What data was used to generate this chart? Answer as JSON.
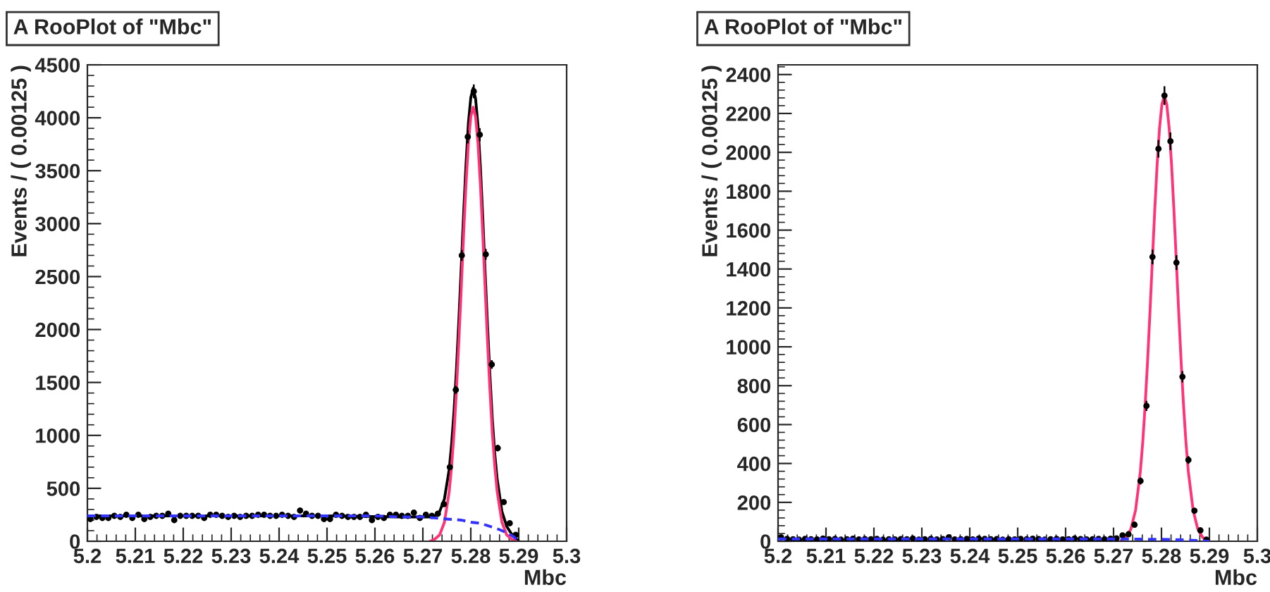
{
  "chart_data": [
    {
      "type": "scatter",
      "title": "A RooPlot of \"Mbc\"",
      "xlabel": "Mbc",
      "ylabel": "Events / ( 0.00125 )",
      "xlim": [
        5.2,
        5.3
      ],
      "xticks": [
        5.2,
        5.21,
        5.22,
        5.23,
        5.24,
        5.25,
        5.26,
        5.27,
        5.28,
        5.29,
        5.3
      ],
      "ylim": [
        0,
        4500
      ],
      "yticks": [
        0,
        500,
        1000,
        1500,
        2000,
        2500,
        3000,
        3500,
        4000,
        4500
      ],
      "grid": false,
      "series": [
        {
          "type": "line",
          "color": "#3333ff",
          "line_style": "dashed",
          "x": [
            5.2,
            5.21,
            5.22,
            5.23,
            5.24,
            5.25,
            5.26,
            5.265,
            5.27,
            5.275,
            5.278,
            5.28,
            5.282,
            5.284,
            5.286,
            5.287,
            5.288,
            5.289,
            5.2895,
            5.29
          ],
          "values": [
            240,
            240,
            240,
            240,
            240,
            240,
            240,
            230,
            230,
            210,
            200,
            180,
            170,
            140,
            110,
            90,
            70,
            40,
            20,
            0
          ]
        },
        {
          "marker": "circle",
          "color": "#000000",
          "x": [
            5.200625,
            5.201875,
            5.203125,
            5.204375,
            5.205625,
            5.206875,
            5.208125,
            5.209375,
            5.210625,
            5.211875,
            5.213125,
            5.214375,
            5.215625,
            5.216875,
            5.218125,
            5.219375,
            5.220625,
            5.221875,
            5.223125,
            5.224375,
            5.225625,
            5.226875,
            5.228125,
            5.229375,
            5.230625,
            5.231875,
            5.233125,
            5.234375,
            5.235625,
            5.236875,
            5.238125,
            5.239375,
            5.240625,
            5.241875,
            5.243125,
            5.244375,
            5.245625,
            5.246875,
            5.248125,
            5.249375,
            5.250625,
            5.251875,
            5.253125,
            5.254375,
            5.255625,
            5.256875,
            5.258125,
            5.259375,
            5.260625,
            5.261875,
            5.263125,
            5.264375,
            5.265625,
            5.266875,
            5.268125,
            5.269375,
            5.270625,
            5.271875,
            5.273125,
            5.274375,
            5.275625,
            5.276875,
            5.278125,
            5.279375,
            5.280625,
            5.281875,
            5.283125,
            5.284375,
            5.285625,
            5.286875,
            5.288125,
            5.289375
          ],
          "values": [
            210,
            230,
            220,
            220,
            240,
            230,
            250,
            220,
            250,
            210,
            230,
            240,
            240,
            260,
            200,
            240,
            240,
            240,
            240,
            220,
            250,
            250,
            240,
            230,
            240,
            230,
            240,
            240,
            250,
            250,
            240,
            240,
            250,
            240,
            230,
            290,
            260,
            240,
            240,
            210,
            210,
            250,
            240,
            230,
            230,
            230,
            250,
            200,
            230,
            220,
            250,
            250,
            240,
            240,
            270,
            220,
            250,
            240,
            260,
            350,
            700,
            1430,
            2700,
            3820,
            4250,
            3840,
            2710,
            1670,
            880,
            370,
            170,
            60
          ],
          "errors": [
            15,
            15,
            15,
            15,
            15,
            15,
            15,
            15,
            15,
            15,
            15,
            15,
            15,
            15,
            15,
            15,
            15,
            15,
            15,
            15,
            15,
            15,
            15,
            15,
            15,
            15,
            15,
            15,
            15,
            15,
            15,
            15,
            15,
            15,
            15,
            15,
            15,
            15,
            15,
            15,
            15,
            15,
            15,
            15,
            15,
            15,
            15,
            15,
            15,
            15,
            15,
            15,
            15,
            15,
            15,
            15,
            15,
            15,
            16,
            19,
            26,
            38,
            52,
            62,
            65,
            62,
            52,
            41,
            30,
            19,
            13,
            8
          ]
        },
        {
          "type": "line",
          "color": "#000000",
          "line_style": "solid",
          "x": [
            5.2,
            5.25,
            5.265,
            5.27,
            5.2715,
            5.2725,
            5.2735,
            5.2745,
            5.2755,
            5.276,
            5.2765,
            5.277,
            5.2775,
            5.278,
            5.2785,
            5.279,
            5.2795,
            5.28,
            5.2805,
            5.281,
            5.2815,
            5.282,
            5.2825,
            5.283,
            5.2835,
            5.284,
            5.2845,
            5.285,
            5.2855,
            5.2865,
            5.2875,
            5.2885,
            5.2895,
            5.29
          ],
          "values": [
            240,
            240,
            230,
            230,
            230,
            240,
            280,
            400,
            680,
            920,
            1230,
            1620,
            2080,
            2580,
            3090,
            3560,
            3950,
            4190,
            4280,
            4180,
            3930,
            3540,
            3060,
            2530,
            2030,
            1560,
            1150,
            830,
            590,
            280,
            140,
            70,
            20,
            0
          ]
        },
        {
          "type": "line",
          "color": "#ff3377",
          "line_style": "solid",
          "x": [
            5.2715,
            5.2725,
            5.2735,
            5.2745,
            5.2755,
            5.276,
            5.2765,
            5.277,
            5.2775,
            5.278,
            5.2785,
            5.279,
            5.2795,
            5.28,
            5.2805,
            5.281,
            5.2815,
            5.282,
            5.2825,
            5.283,
            5.2835,
            5.284,
            5.2845,
            5.285,
            5.2855,
            5.2865,
            5.2875,
            5.2885,
            5.2895
          ],
          "values": [
            0,
            20,
            60,
            180,
            470,
            710,
            1020,
            1420,
            1880,
            2380,
            2900,
            3370,
            3760,
            4010,
            4100,
            4010,
            3760,
            3370,
            2900,
            2380,
            1880,
            1420,
            1020,
            710,
            470,
            180,
            60,
            20,
            0
          ]
        }
      ]
    },
    {
      "type": "scatter",
      "title": "A RooPlot of \"Mbc\"",
      "xlabel": "Mbc",
      "ylabel": "Events / ( 0.00125 )",
      "xlim": [
        5.2,
        5.3
      ],
      "xticks": [
        5.2,
        5.21,
        5.22,
        5.23,
        5.24,
        5.25,
        5.26,
        5.27,
        5.28,
        5.29,
        5.3
      ],
      "ylim": [
        0,
        2450
      ],
      "yticks": [
        0,
        200,
        400,
        600,
        800,
        1000,
        1200,
        1400,
        1600,
        1800,
        2000,
        2200,
        2400
      ],
      "grid": false,
      "series": [
        {
          "type": "line",
          "color": "#3333ff",
          "line_style": "dashed",
          "x": [
            5.2,
            5.27,
            5.28,
            5.285,
            5.288,
            5.29
          ],
          "values": [
            12,
            12,
            10,
            7,
            3,
            0
          ]
        },
        {
          "marker": "circle",
          "color": "#000000",
          "x": [
            5.200625,
            5.201875,
            5.203125,
            5.204375,
            5.205625,
            5.206875,
            5.208125,
            5.209375,
            5.210625,
            5.211875,
            5.213125,
            5.214375,
            5.215625,
            5.216875,
            5.218125,
            5.219375,
            5.220625,
            5.221875,
            5.223125,
            5.224375,
            5.225625,
            5.226875,
            5.228125,
            5.229375,
            5.230625,
            5.231875,
            5.233125,
            5.234375,
            5.235625,
            5.236875,
            5.238125,
            5.239375,
            5.240625,
            5.241875,
            5.243125,
            5.244375,
            5.245625,
            5.246875,
            5.248125,
            5.249375,
            5.250625,
            5.251875,
            5.253125,
            5.254375,
            5.255625,
            5.256875,
            5.258125,
            5.259375,
            5.260625,
            5.261875,
            5.263125,
            5.264375,
            5.265625,
            5.266875,
            5.268125,
            5.269375,
            5.270625,
            5.271875,
            5.273125,
            5.274375,
            5.275625,
            5.276875,
            5.278125,
            5.279375,
            5.280625,
            5.281875,
            5.283125,
            5.284375,
            5.285625,
            5.286875,
            5.288125,
            5.289375
          ],
          "values": [
            20,
            12,
            10,
            8,
            12,
            10,
            9,
            14,
            10,
            12,
            8,
            10,
            13,
            9,
            11,
            10,
            12,
            8,
            10,
            9,
            11,
            10,
            14,
            8,
            10,
            12,
            9,
            11,
            20,
            9,
            10,
            12,
            9,
            14,
            12,
            10,
            11,
            8,
            10,
            9,
            12,
            10,
            13,
            11,
            8,
            10,
            12,
            9,
            10,
            14,
            11,
            9,
            10,
            12,
            10,
            13,
            15,
            30,
            36,
            85,
            310,
            696,
            1462,
            2018,
            2292,
            2057,
            1433,
            846,
            418,
            157,
            56,
            8
          ],
          "errors": [
            4,
            3,
            3,
            3,
            3,
            3,
            3,
            4,
            3,
            3,
            3,
            3,
            4,
            3,
            3,
            3,
            3,
            3,
            3,
            3,
            3,
            3,
            4,
            3,
            3,
            3,
            3,
            3,
            4,
            3,
            3,
            3,
            3,
            4,
            3,
            3,
            3,
            3,
            3,
            3,
            3,
            3,
            4,
            3,
            3,
            3,
            3,
            3,
            3,
            4,
            3,
            3,
            3,
            3,
            3,
            4,
            4,
            5,
            6,
            9,
            18,
            26,
            38,
            45,
            48,
            45,
            38,
            29,
            20,
            13,
            7,
            3
          ]
        },
        {
          "type": "line",
          "color": "#ff3377",
          "line_style": "solid",
          "x": [
            5.2716,
            5.2726,
            5.2736,
            5.2746,
            5.2756,
            5.2761,
            5.2766,
            5.2771,
            5.2776,
            5.2781,
            5.2786,
            5.2791,
            5.2796,
            5.2801,
            5.2806,
            5.2811,
            5.2816,
            5.2821,
            5.2826,
            5.2831,
            5.2836,
            5.2841,
            5.2846,
            5.2851,
            5.2856,
            5.2866,
            5.2876,
            5.2886,
            5.2896
          ],
          "values": [
            6,
            20,
            61,
            160,
            360,
            512,
            701,
            925,
            1177,
            1443,
            1703,
            1939,
            2127,
            2248,
            2290,
            2248,
            2127,
            1939,
            1703,
            1443,
            1177,
            925,
            701,
            512,
            360,
            160,
            61,
            20,
            6
          ]
        }
      ]
    }
  ]
}
